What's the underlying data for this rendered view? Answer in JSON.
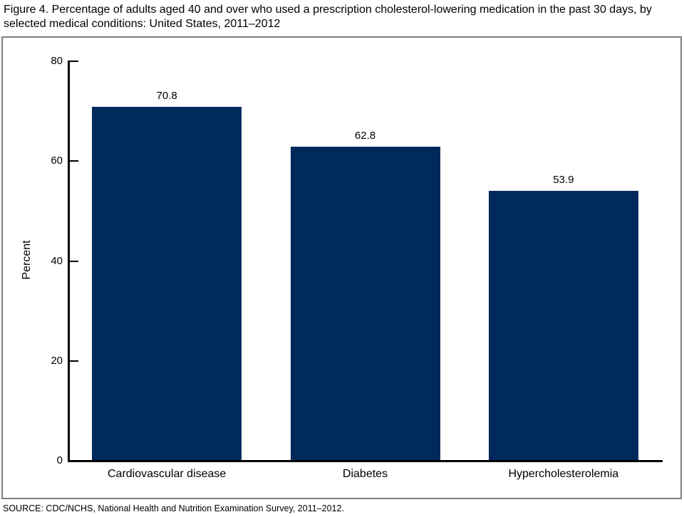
{
  "figure": {
    "title": "Figure 4. Percentage of adults aged 40 and over who used a prescription cholesterol-lowering medication in the past 30 days, by selected medical conditions: United States, 2011–2012",
    "source": "SOURCE: CDC/NCHS, National Health and Nutrition Examination Survey, 2011–2012."
  },
  "chart_data": {
    "type": "bar",
    "categories": [
      "Cardiovascular disease",
      "Diabetes",
      "Hypercholesterolemia"
    ],
    "values": [
      70.8,
      62.8,
      53.9
    ],
    "value_labels": [
      "70.8",
      "62.8",
      "53.9"
    ],
    "title": "Figure 4. Percentage of adults aged 40 and over who used a prescription cholesterol-lowering medication in the past 30 days, by selected medical conditions: United States, 2011–2012",
    "xlabel": "",
    "ylabel": "Percent",
    "ylim": [
      0,
      80
    ],
    "yticks": [
      0,
      20,
      40,
      60,
      80
    ],
    "grid": false,
    "legend": "none"
  },
  "colors": {
    "bar": "#002a5c",
    "axis": "#000000",
    "frame_border": "#7f7f7f",
    "text": "#000000"
  }
}
